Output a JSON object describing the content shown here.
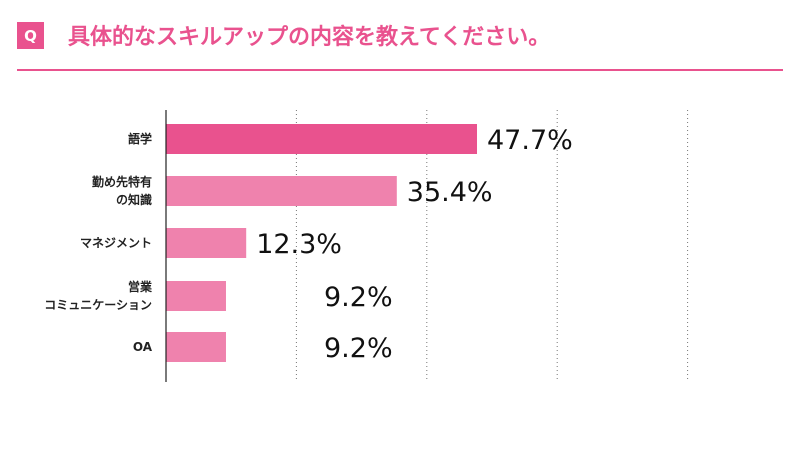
{
  "header": {
    "badge": "Q",
    "title": "具体的なスキルアップの内容を教えてください。"
  },
  "colors": {
    "accent": "#e9528e",
    "bar_primary": "#e9528e",
    "bar_secondary": "#ef82ad"
  },
  "chart_data": {
    "type": "bar",
    "orientation": "horizontal",
    "categories": [
      [
        "語学"
      ],
      [
        "勤め先特有",
        "の知識"
      ],
      [
        "マネジメント"
      ],
      [
        "営業",
        "コミュニケーション"
      ],
      [
        "OA"
      ]
    ],
    "values": [
      47.7,
      35.4,
      12.3,
      9.2,
      9.2
    ],
    "value_labels": [
      "47.7%",
      "35.4%",
      "12.3%",
      "9.2%",
      "9.2%"
    ],
    "xlim": [
      0,
      100
    ],
    "grid": "vertical-dotted",
    "legend": "none"
  }
}
